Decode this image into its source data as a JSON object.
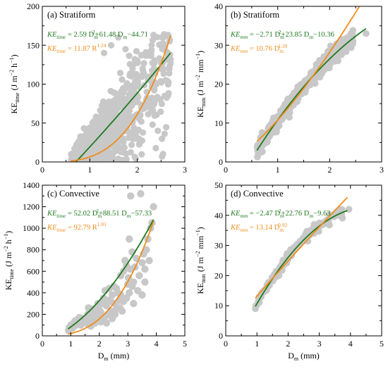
{
  "figure": {
    "colors": {
      "scatter": "#c8c8c8",
      "fit_green": "#1f7a1f",
      "fit_orange": "#f08c1c",
      "axis": "#000000"
    }
  },
  "chart_data": [
    {
      "id": "a",
      "type": "scatter",
      "panel_label": "(a) Stratiform",
      "xlabel": "",
      "ylabel_parts": [
        "KE",
        "time",
        " (J m",
        "−2",
        " h",
        "−1",
        ")"
      ],
      "xlim": [
        0,
        3
      ],
      "ylim": [
        0,
        200
      ],
      "xticks": [
        0,
        1,
        2,
        3
      ],
      "yticks": [
        0,
        50,
        100,
        150,
        200
      ],
      "eq1": {
        "lhs": "KE",
        "lhs_sub": "time",
        "text": " = 2.59 D",
        "sub": "m",
        "sup": "2",
        "tail": "+61.48 D",
        "sub2": "m",
        "tail2": "−44.71"
      },
      "eq2": {
        "lhs": "KE",
        "lhs_sub": "time",
        "text": " = 11.87 R",
        "sup": "1.24"
      },
      "fit_green": {
        "a": 2.59,
        "b": 61.48,
        "c": -44.71,
        "x_range": [
          0.6,
          2.7
        ]
      },
      "fit_orange": {
        "a": 6.5,
        "b": 3.24,
        "x_range": [
          0.6,
          2.7
        ]
      },
      "cloud": {
        "kind": "stratiform_time",
        "count": 1400,
        "seed": 11,
        "x_range": [
          0.6,
          2.7
        ]
      }
    },
    {
      "id": "b",
      "type": "scatter",
      "panel_label": "(b) Stratiform",
      "xlabel": "",
      "ylabel_parts": [
        "KE",
        "mm",
        " (J m",
        "−2",
        " mm",
        "−1",
        ")"
      ],
      "xlim": [
        0,
        3
      ],
      "ylim": [
        0,
        40
      ],
      "xticks": [
        0,
        1,
        2,
        3
      ],
      "yticks": [
        0,
        10,
        20,
        30,
        40
      ],
      "eq1": {
        "lhs": "KE",
        "lhs_sub": "mm",
        "text": " = −2.71 D",
        "sub": "m",
        "sup": "2",
        "tail": "+23.85 D",
        "sub2": "m",
        "tail2": "−10.36"
      },
      "eq2": {
        "lhs": "KE",
        "lhs_sub": "mm",
        "text": " = 10.76 D",
        "sub": "m",
        "sup": "1.39"
      },
      "fit_green": {
        "a": -2.71,
        "b": 23.85,
        "c": -10.36,
        "x_range": [
          0.6,
          2.7
        ]
      },
      "fit_orange": {
        "a": 10.76,
        "b": 1.39,
        "x_range": [
          0.6,
          2.7
        ]
      },
      "cloud": {
        "kind": "tight",
        "count": 500,
        "seed": 23,
        "x_range": [
          0.6,
          2.45
        ],
        "spread": 0.9,
        "extra": [
          [
            2.7,
            33
          ]
        ]
      }
    },
    {
      "id": "c",
      "type": "scatter",
      "panel_label": "(c) Convective",
      "xlabel": "D_m (mm)",
      "ylabel_parts": [
        "KE",
        "time",
        " (J m",
        "−2",
        " h",
        "−1",
        ")"
      ],
      "xlim": [
        0,
        5
      ],
      "ylim": [
        0,
        1400
      ],
      "xticks": [
        0,
        1,
        2,
        3,
        4,
        5
      ],
      "yticks": [
        0,
        200,
        400,
        600,
        800,
        1000,
        1200,
        1400
      ],
      "eq1": {
        "lhs": "KE",
        "lhs_sub": "time",
        "text": " = 52.02 D",
        "sub": "m",
        "sup": "2",
        "tail": "+88.51 D",
        "sub2": "m",
        "tail2": "−57.33"
      },
      "eq2": {
        "lhs": "KE",
        "lhs_sub": "time",
        "text": " = 92.79 R",
        "sup": "1.81"
      },
      "fit_green": {
        "a": 52.02,
        "b": 88.51,
        "c": -57.33,
        "x_range": [
          0.9,
          3.9
        ]
      },
      "fit_orange": {
        "a": 22.0,
        "b": 2.85,
        "x_range": [
          0.9,
          3.9
        ]
      },
      "points": [
        [
          0.92,
          50
        ],
        [
          0.95,
          80
        ],
        [
          1.0,
          100
        ],
        [
          1.05,
          70
        ],
        [
          1.1,
          120
        ],
        [
          1.15,
          95
        ],
        [
          1.2,
          110
        ],
        [
          1.22,
          150
        ],
        [
          1.3,
          130
        ],
        [
          1.35,
          100
        ],
        [
          1.4,
          160
        ],
        [
          1.45,
          130
        ],
        [
          1.5,
          150
        ],
        [
          1.55,
          120
        ],
        [
          1.6,
          200
        ],
        [
          1.62,
          260
        ],
        [
          1.65,
          140
        ],
        [
          1.7,
          180
        ],
        [
          1.75,
          130
        ],
        [
          1.8,
          250
        ],
        [
          1.85,
          210
        ],
        [
          1.9,
          160
        ],
        [
          1.95,
          200
        ],
        [
          2.0,
          240
        ],
        [
          2.02,
          150
        ],
        [
          2.05,
          130
        ],
        [
          2.1,
          300
        ],
        [
          2.15,
          350
        ],
        [
          2.2,
          420
        ],
        [
          2.25,
          280
        ],
        [
          2.3,
          200
        ],
        [
          2.35,
          440
        ],
        [
          2.4,
          230
        ],
        [
          2.45,
          380
        ],
        [
          2.5,
          460
        ],
        [
          2.55,
          300
        ],
        [
          2.6,
          250
        ],
        [
          2.65,
          400
        ],
        [
          2.7,
          330
        ],
        [
          2.72,
          260
        ],
        [
          2.75,
          560
        ],
        [
          2.8,
          230
        ],
        [
          2.85,
          600
        ],
        [
          2.9,
          700
        ],
        [
          2.95,
          650
        ],
        [
          3.0,
          480
        ],
        [
          3.02,
          540
        ],
        [
          3.05,
          900
        ],
        [
          3.08,
          620
        ],
        [
          3.1,
          1300
        ],
        [
          3.15,
          780
        ],
        [
          3.2,
          500
        ],
        [
          3.25,
          640
        ],
        [
          3.3,
          720
        ],
        [
          3.4,
          560
        ],
        [
          3.45,
          1320
        ],
        [
          3.5,
          680
        ],
        [
          3.55,
          760
        ],
        [
          3.6,
          620
        ],
        [
          3.65,
          800
        ],
        [
          3.7,
          900
        ],
        [
          3.75,
          700
        ],
        [
          3.8,
          1000
        ],
        [
          3.85,
          1050
        ],
        [
          3.9,
          1200
        ],
        [
          1.3,
          170
        ],
        [
          1.6,
          110
        ],
        [
          1.75,
          240
        ],
        [
          1.9,
          260
        ],
        [
          2.05,
          220
        ],
        [
          2.2,
          180
        ],
        [
          2.3,
          330
        ],
        [
          2.45,
          160
        ],
        [
          2.6,
          440
        ],
        [
          2.75,
          380
        ],
        [
          2.85,
          320
        ],
        [
          3.05,
          400
        ],
        [
          3.2,
          300
        ],
        [
          3.35,
          420
        ],
        [
          3.6,
          500
        ],
        [
          1.15,
          140
        ],
        [
          1.85,
          120
        ],
        [
          2.4,
          320
        ],
        [
          2.95,
          350
        ],
        [
          3.15,
          460
        ],
        [
          3.5,
          380
        ],
        [
          1.7,
          90
        ],
        [
          2.55,
          200
        ],
        [
          2.25,
          120
        ],
        [
          1.95,
          300
        ]
      ]
    },
    {
      "id": "d",
      "type": "scatter",
      "panel_label": "(d) Convective",
      "xlabel": "D_m (mm)",
      "ylabel_parts": [
        "KE",
        "mm",
        " (J m",
        "−2",
        " mm",
        "−1",
        ")"
      ],
      "xlim": [
        0,
        5
      ],
      "ylim": [
        0,
        50
      ],
      "xticks": [
        0,
        1,
        2,
        3,
        4,
        5
      ],
      "yticks": [
        0,
        10,
        20,
        30,
        40,
        50
      ],
      "eq1": {
        "lhs": "KE",
        "lhs_sub": "mm",
        "text": " = −2.47 D",
        "sub": "m",
        "sup": "2",
        "tail": "+22.76 D",
        "sub2": "m",
        "tail2": "−9.63"
      },
      "eq2": {
        "lhs": "KE",
        "lhs_sub": "mm",
        "text": " = 13.14 D",
        "sub": "m",
        "sup": "0.92"
      },
      "fit_green": {
        "a": -2.47,
        "b": 22.76,
        "c": -9.63,
        "x_range": [
          0.95,
          3.9
        ]
      },
      "fit_orange": {
        "a": 13.14,
        "b": 0.92,
        "x_range": [
          0.95,
          3.9
        ]
      },
      "cloud": {
        "kind": "tight",
        "count": 160,
        "seed": 37,
        "x_range": [
          0.95,
          3.75
        ],
        "spread": 0.8,
        "extra": [
          [
            0.95,
            9
          ],
          [
            3.95,
            42
          ]
        ]
      }
    }
  ]
}
